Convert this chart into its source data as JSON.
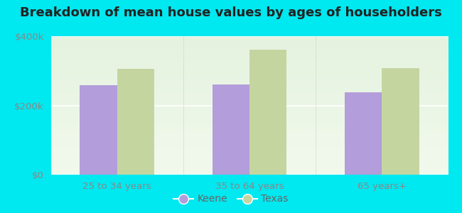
{
  "title": "Breakdown of mean house values by ages of householders",
  "categories": [
    "25 to 34 years",
    "35 to 64 years",
    "65 years+"
  ],
  "keene_values": [
    258000,
    260000,
    238000
  ],
  "texas_values": [
    305000,
    362000,
    307000
  ],
  "keene_color": "#b39ddb",
  "texas_color": "#c5d5a0",
  "background_color": "#00e8f0",
  "plot_bg_start": "#eaf5e8",
  "plot_bg_end": "#f5faf0",
  "ylim": [
    0,
    400000
  ],
  "yticks": [
    0,
    200000,
    400000
  ],
  "ytick_labels": [
    "$0",
    "$200k",
    "$400k"
  ],
  "legend_labels": [
    "Keene",
    "Texas"
  ],
  "bar_width": 0.28,
  "title_fontsize": 13,
  "tick_fontsize": 9.5,
  "legend_fontsize": 10
}
